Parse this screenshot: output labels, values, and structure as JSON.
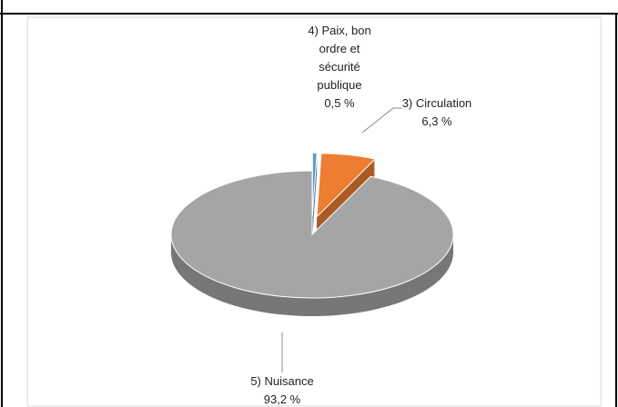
{
  "chart_data": {
    "type": "pie",
    "categories": [
      "4) Paix, bon ordre et sécurité publique",
      "3) Circulation",
      "5) Nuisance"
    ],
    "values": [
      0.5,
      6.3,
      93.2
    ],
    "value_labels": [
      "0,5 %",
      "6,3 %",
      "93,2 %"
    ],
    "colors": [
      "#5b9bd5",
      "#ed7d31",
      "#a5a5a5"
    ]
  }
}
